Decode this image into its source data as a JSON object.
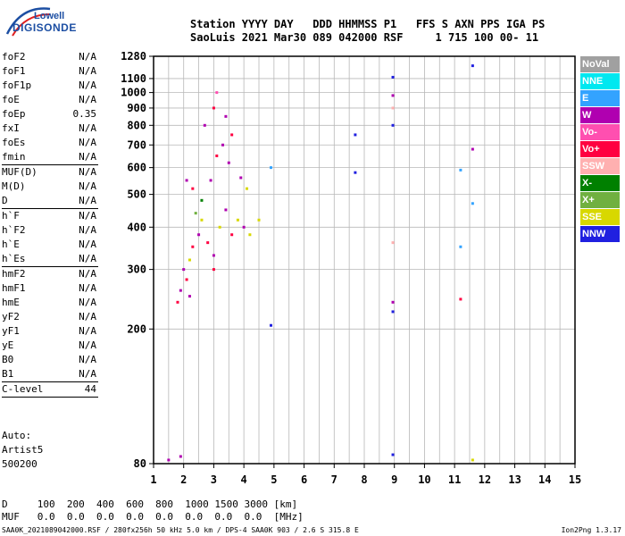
{
  "logo": {
    "brand": "Lowell",
    "name": "DIGISONDE"
  },
  "header": {
    "line1": "Station YYYY DAY   DDD HHMMSS P1   FFS S AXN PPS IGA PS",
    "line2": "SaoLuis 2021 Mar30 089 042000 RSF     1 715 100 00- 11"
  },
  "params": [
    {
      "name": "foF2",
      "value": "N/A"
    },
    {
      "name": "foF1",
      "value": "N/A"
    },
    {
      "name": "foF1p",
      "value": "N/A"
    },
    {
      "name": "foE",
      "value": "N/A"
    },
    {
      "name": "foEp",
      "value": "0.35"
    },
    {
      "name": "fxI",
      "value": "N/A"
    },
    {
      "name": "foEs",
      "value": "N/A"
    },
    {
      "name": "fmin",
      "value": "N/A"
    },
    {
      "sep": true
    },
    {
      "name": "MUF(D)",
      "value": "N/A"
    },
    {
      "name": "M(D)",
      "value": "N/A"
    },
    {
      "name": "D",
      "value": "N/A"
    },
    {
      "sep": true
    },
    {
      "name": "h`F",
      "value": "N/A"
    },
    {
      "name": "h`F2",
      "value": "N/A"
    },
    {
      "name": "h`E",
      "value": "N/A"
    },
    {
      "name": "h`Es",
      "value": "N/A"
    },
    {
      "sep": true
    },
    {
      "name": "hmF2",
      "value": "N/A"
    },
    {
      "name": "hmF1",
      "value": "N/A"
    },
    {
      "name": "hmE",
      "value": "N/A"
    },
    {
      "name": "yF2",
      "value": "N/A"
    },
    {
      "name": "yF1",
      "value": "N/A"
    },
    {
      "name": "yE",
      "value": "N/A"
    },
    {
      "name": "B0",
      "value": "N/A"
    },
    {
      "name": "B1",
      "value": "N/A"
    },
    {
      "sep": true
    },
    {
      "name": "C-level",
      "value": "44"
    },
    {
      "sep": true
    }
  ],
  "auto": [
    "Auto:",
    "Artist5",
    "500200"
  ],
  "muf_table": {
    "d_row": "D     100  200  400  600  800  1000 1500 3000 [km]",
    "muf_row": "MUF   0.0  0.0  0.0  0.0  0.0  0.0  0.0  0.0  [MHz]"
  },
  "footer": {
    "left": "SAA0K_2021089042000.RSF / 280fx256h 50 kHz 5.0 km / DPS-4 SAA0K 903 / 2.6 S 315.8 E",
    "right": "Ion2Png 1.3.17"
  },
  "legend": [
    {
      "label": "NoVal",
      "color": "#a0a0a0"
    },
    {
      "label": "NNE",
      "color": "#00e8f0"
    },
    {
      "label": "E",
      "color": "#33a3ff"
    },
    {
      "label": "W",
      "color": "#b000b0"
    },
    {
      "label": "Vo-",
      "color": "#ff4fb0"
    },
    {
      "label": "Vo+",
      "color": "#ff0040"
    },
    {
      "label": "SSW",
      "color": "#ffb0b0"
    },
    {
      "label": "X-",
      "color": "#008000"
    },
    {
      "label": "X+",
      "color": "#70b040"
    },
    {
      "label": "SSE",
      "color": "#d8d800"
    },
    {
      "label": "NNW",
      "color": "#2020e0"
    }
  ],
  "chart_data": {
    "type": "scatter",
    "xlabel": "",
    "ylabel": "",
    "xlim": [
      1,
      15
    ],
    "ylim": [
      80,
      1280
    ],
    "x_ticks": [
      1,
      2,
      3,
      4,
      5,
      6,
      7,
      8,
      9,
      10,
      11,
      12,
      13,
      14,
      15
    ],
    "y_ticks": [
      80,
      200,
      300,
      400,
      500,
      600,
      700,
      800,
      900,
      1000,
      1100,
      1280
    ],
    "y_scale": "log",
    "grid": true,
    "points": [
      {
        "x": 2.0,
        "y": 300,
        "c": "#b000b0"
      },
      {
        "x": 2.1,
        "y": 280,
        "c": "#ff0040"
      },
      {
        "x": 1.9,
        "y": 260,
        "c": "#b000b0"
      },
      {
        "x": 2.2,
        "y": 320,
        "c": "#d8d800"
      },
      {
        "x": 2.3,
        "y": 350,
        "c": "#ff0040"
      },
      {
        "x": 2.5,
        "y": 380,
        "c": "#b000b0"
      },
      {
        "x": 2.6,
        "y": 420,
        "c": "#d8d800"
      },
      {
        "x": 2.8,
        "y": 360,
        "c": "#ff0040"
      },
      {
        "x": 3.0,
        "y": 330,
        "c": "#b000b0"
      },
      {
        "x": 3.2,
        "y": 400,
        "c": "#d8d800"
      },
      {
        "x": 3.4,
        "y": 450,
        "c": "#b000b0"
      },
      {
        "x": 3.6,
        "y": 380,
        "c": "#ff0040"
      },
      {
        "x": 3.8,
        "y": 420,
        "c": "#d8d800"
      },
      {
        "x": 4.0,
        "y": 400,
        "c": "#b000b0"
      },
      {
        "x": 4.2,
        "y": 380,
        "c": "#d8d800"
      },
      {
        "x": 4.5,
        "y": 420,
        "c": "#d8d800"
      },
      {
        "x": 2.9,
        "y": 550,
        "c": "#b000b0"
      },
      {
        "x": 3.1,
        "y": 650,
        "c": "#ff0040"
      },
      {
        "x": 3.3,
        "y": 700,
        "c": "#b000b0"
      },
      {
        "x": 3.5,
        "y": 620,
        "c": "#b000b0"
      },
      {
        "x": 2.1,
        "y": 550,
        "c": "#b000b0"
      },
      {
        "x": 2.3,
        "y": 520,
        "c": "#ff0040"
      },
      {
        "x": 2.7,
        "y": 800,
        "c": "#b000b0"
      },
      {
        "x": 3.0,
        "y": 900,
        "c": "#ff0040"
      },
      {
        "x": 3.1,
        "y": 1000,
        "c": "#ff4fb0"
      },
      {
        "x": 3.4,
        "y": 850,
        "c": "#b000b0"
      },
      {
        "x": 3.6,
        "y": 750,
        "c": "#ff0040"
      },
      {
        "x": 3.9,
        "y": 560,
        "c": "#b000b0"
      },
      {
        "x": 4.1,
        "y": 520,
        "c": "#d8d800"
      },
      {
        "x": 2.6,
        "y": 480,
        "c": "#008000"
      },
      {
        "x": 2.4,
        "y": 440,
        "c": "#70b040"
      },
      {
        "x": 3.0,
        "y": 300,
        "c": "#ff0040"
      },
      {
        "x": 2.2,
        "y": 250,
        "c": "#b000b0"
      },
      {
        "x": 1.8,
        "y": 240,
        "c": "#ff0040"
      },
      {
        "x": 1.5,
        "y": 82,
        "c": "#b000b0"
      },
      {
        "x": 1.9,
        "y": 84,
        "c": "#b000b0"
      },
      {
        "x": 4.9,
        "y": 600,
        "c": "#33a3ff"
      },
      {
        "x": 4.9,
        "y": 205,
        "c": "#2020e0"
      },
      {
        "x": 7.7,
        "y": 750,
        "c": "#2020e0"
      },
      {
        "x": 7.7,
        "y": 580,
        "c": "#2020e0"
      },
      {
        "x": 8.95,
        "y": 1110,
        "c": "#2020e0"
      },
      {
        "x": 8.95,
        "y": 980,
        "c": "#b000b0"
      },
      {
        "x": 8.95,
        "y": 900,
        "c": "#ffb0b0"
      },
      {
        "x": 8.95,
        "y": 800,
        "c": "#2020e0"
      },
      {
        "x": 8.95,
        "y": 360,
        "c": "#ffb0b0"
      },
      {
        "x": 8.95,
        "y": 240,
        "c": "#b000b0"
      },
      {
        "x": 8.95,
        "y": 225,
        "c": "#2020e0"
      },
      {
        "x": 8.95,
        "y": 85,
        "c": "#2020e0"
      },
      {
        "x": 11.2,
        "y": 590,
        "c": "#33a3ff"
      },
      {
        "x": 11.2,
        "y": 350,
        "c": "#33a3ff"
      },
      {
        "x": 11.2,
        "y": 245,
        "c": "#ff0040"
      },
      {
        "x": 11.6,
        "y": 1200,
        "c": "#2020e0"
      },
      {
        "x": 11.6,
        "y": 680,
        "c": "#b000b0"
      },
      {
        "x": 11.6,
        "y": 470,
        "c": "#33a3ff"
      },
      {
        "x": 11.6,
        "y": 82,
        "c": "#d8d800"
      }
    ]
  }
}
